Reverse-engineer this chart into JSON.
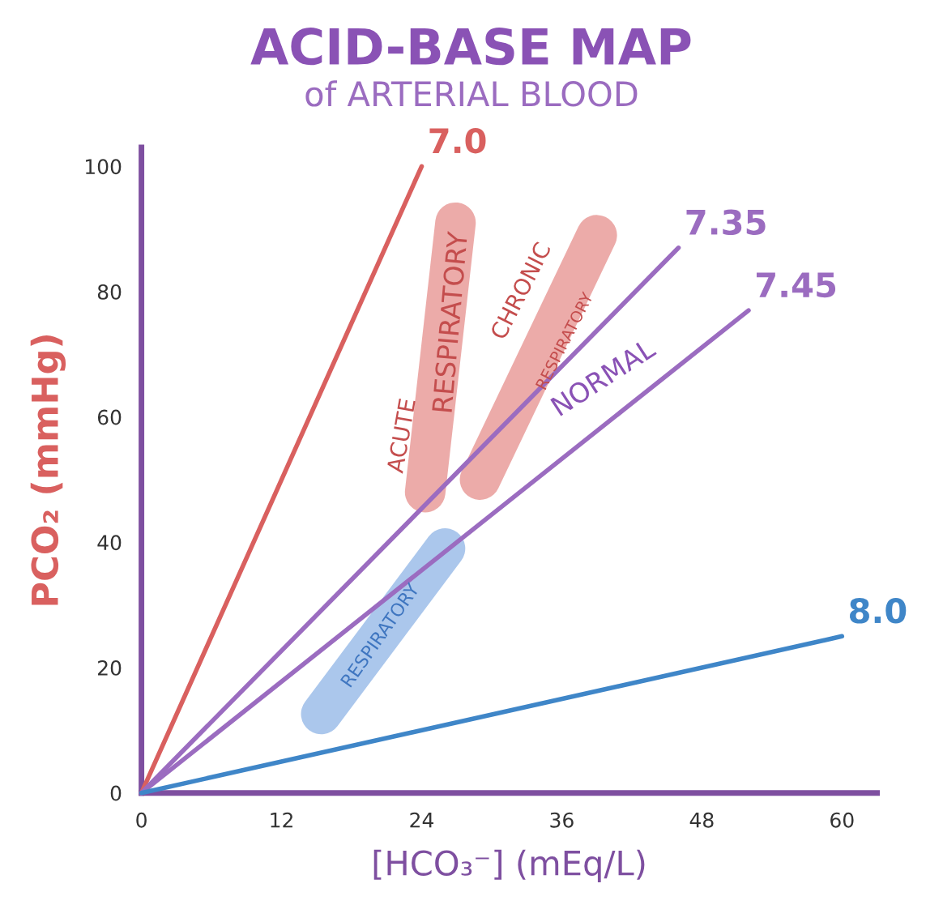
{
  "chart_data": {
    "type": "line",
    "title": "ACID-BASE MAP",
    "subtitle": "of ARTERIAL BLOOD",
    "xlabel": "[HCO₃⁻] (mEq/L)",
    "ylabel": "PCO₂ (mmHg)",
    "xlim": [
      0,
      63
    ],
    "ylim": [
      0,
      103
    ],
    "xticks": [
      0,
      12,
      24,
      36,
      48,
      60
    ],
    "yticks": [
      0,
      20,
      40,
      60,
      80,
      100
    ],
    "grid": false,
    "legend": false,
    "series": [
      {
        "name": "7.0",
        "color": "#d9605f",
        "x": [
          0,
          24
        ],
        "values": [
          0,
          100
        ]
      },
      {
        "name": "7.35",
        "color": "#9b6cc0",
        "x": [
          0,
          46
        ],
        "values": [
          0,
          87
        ]
      },
      {
        "name": "7.45",
        "color": "#9b6cc0",
        "x": [
          0,
          52
        ],
        "values": [
          0,
          77
        ]
      },
      {
        "name": "8.0",
        "color": "#3f86c8",
        "x": [
          0,
          60
        ],
        "values": [
          0,
          25
        ]
      }
    ],
    "annotations": [
      "ACUTE",
      "RESPIRATORY",
      "CHRONIC",
      "RESPIRATORY",
      "NORMAL",
      "RESPIRATORY"
    ]
  }
}
